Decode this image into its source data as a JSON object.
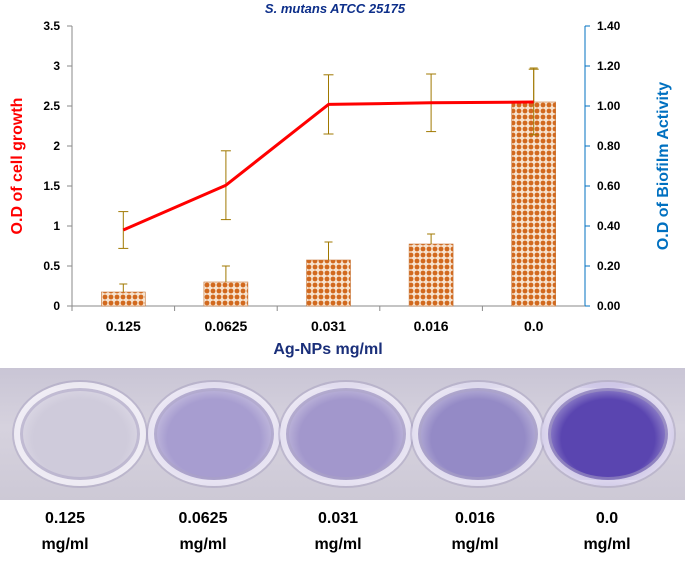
{
  "chart_data": {
    "type": "bar+line",
    "title": "S. mutans ATCC 25175",
    "xlabel": "Ag-NPs mg/ml",
    "ylabel_left": "O.D of cell growth",
    "ylabel_right": "O.D  of Biofilm Activity",
    "categories": [
      "0.125",
      "0.0625",
      "0.031",
      "0.016",
      "0.0"
    ],
    "ylim_left": [
      0,
      3.5
    ],
    "yticks_left": [
      "0",
      "0.5",
      "1",
      "1.5",
      "2",
      "2.5",
      "3",
      "3.5"
    ],
    "ylim_right": [
      0,
      1.4
    ],
    "yticks_right": [
      "0.00",
      "0.20",
      "0.40",
      "0.60",
      "0.80",
      "1.00",
      "1.20",
      "1.40"
    ],
    "series": [
      {
        "name": "Biofilm activity",
        "kind": "bar",
        "axis": "right",
        "color": "#d2691e",
        "values": [
          0.07,
          0.12,
          0.23,
          0.31,
          1.02
        ],
        "errors": [
          0.04,
          0.08,
          0.09,
          0.05,
          0.17
        ]
      },
      {
        "name": "Cell growth",
        "kind": "line",
        "axis": "left",
        "color": "#ff0000",
        "values": [
          0.95,
          1.51,
          2.52,
          2.54,
          2.55
        ],
        "errors": [
          0.23,
          0.43,
          0.37,
          0.36,
          0.41
        ]
      }
    ],
    "error_bar_color": "#a07800"
  },
  "photo": {
    "well_colors": [
      "#cfcbdb",
      "#a79dd0",
      "#a297cc",
      "#948ac6",
      "#5a45b0"
    ]
  },
  "concentrations": [
    {
      "value": "0.125",
      "unit": "mg/ml"
    },
    {
      "value": "0.0625",
      "unit": "mg/ml"
    },
    {
      "value": "0.031",
      "unit": "mg/ml"
    },
    {
      "value": "0.016",
      "unit": "mg/ml"
    },
    {
      "value": "0.0",
      "unit": "mg/ml"
    }
  ]
}
